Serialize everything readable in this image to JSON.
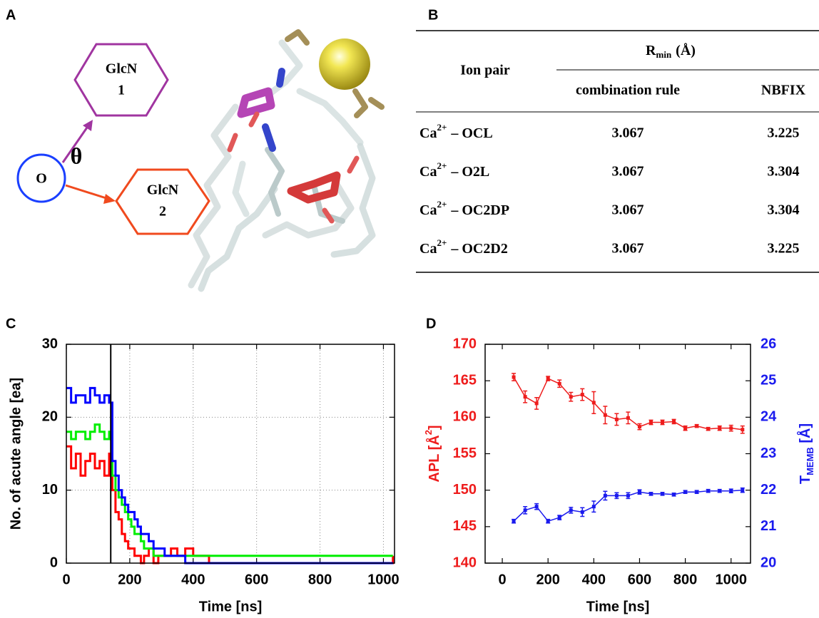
{
  "panel_labels": {
    "a": "A",
    "b": "B",
    "c": "C",
    "d": "D"
  },
  "diagram": {
    "origin": "O",
    "angle": "θ",
    "ring1": {
      "name": "GlcN",
      "number": "1"
    },
    "ring2": {
      "name": "GlcN",
      "number": "2"
    }
  },
  "table": {
    "header": {
      "ion_pair": "Ion pair",
      "rmin": {
        "symbol": "R",
        "sub": "min",
        "unit": "(Å)"
      },
      "columns": [
        "combination rule",
        "NBFIX"
      ]
    },
    "rows": [
      {
        "ion": "Ca",
        "charge": "2+",
        "partner": "– OCL",
        "combination_rule": "3.067",
        "nbfix": "3.225"
      },
      {
        "ion": "Ca",
        "charge": "2+",
        "partner": "– O2L",
        "combination_rule": "3.067",
        "nbfix": "3.304"
      },
      {
        "ion": "Ca",
        "charge": "2+",
        "partner": "– OC2DP",
        "combination_rule": "3.067",
        "nbfix": "3.304"
      },
      {
        "ion": "Ca",
        "charge": "2+",
        "partner": "– OC2D2",
        "combination_rule": "3.067",
        "nbfix": "3.225"
      }
    ]
  },
  "chart_data": [
    {
      "type": "line",
      "step": true,
      "grid": true,
      "xlabel": "Time [ns]",
      "ylabel": "No. of acute angle [ea]",
      "xlim": [
        0,
        1035
      ],
      "ylim": [
        0,
        30
      ],
      "xticks": [
        0,
        200,
        400,
        600,
        800,
        1000
      ],
      "yticks": [
        0,
        10,
        20,
        30
      ],
      "vline": 140,
      "x": [
        0,
        15,
        30,
        45,
        60,
        75,
        90,
        105,
        120,
        135,
        145,
        155,
        165,
        175,
        185,
        195,
        205,
        215,
        225,
        235,
        245,
        260,
        275,
        290,
        310,
        330,
        350,
        375,
        400,
        450,
        500,
        600,
        700,
        800,
        900,
        1000,
        1030
      ],
      "series": [
        {
          "color": "#ff0000",
          "values": [
            16,
            13,
            15,
            12,
            14,
            15,
            13,
            14,
            12,
            15,
            10,
            7,
            6,
            4,
            3,
            2,
            2,
            1,
            1,
            0,
            1,
            2,
            0,
            1,
            1,
            2,
            1,
            2,
            1,
            0,
            0,
            0,
            0,
            0,
            0,
            0,
            1
          ]
        },
        {
          "color": "#00ee00",
          "values": [
            18,
            17,
            18,
            18,
            17,
            18,
            19,
            18,
            17,
            18,
            12,
            10,
            9,
            8,
            7,
            6,
            5,
            4,
            4,
            3,
            2,
            2,
            1,
            1,
            1,
            1,
            1,
            1,
            1,
            1,
            1,
            1,
            1,
            1,
            1,
            1,
            1
          ]
        },
        {
          "color": "#0000ff",
          "values": [
            24,
            22,
            23,
            23,
            22,
            24,
            23,
            22,
            23,
            22,
            14,
            12,
            10,
            9,
            8,
            7,
            7,
            6,
            5,
            4,
            4,
            3,
            2,
            2,
            1,
            1,
            1,
            0,
            0,
            0,
            0,
            0,
            0,
            0,
            0,
            0,
            0
          ]
        }
      ]
    },
    {
      "type": "line",
      "grid": false,
      "xlabel": "Time [ns]",
      "ylabel": {
        "text": "APL [Å",
        "sup": "2",
        "close": "]"
      },
      "y2label": {
        "text": "T",
        "sub": "MEMB",
        "close": " [Å]"
      },
      "ylabel_color": "#ee1c1c",
      "y2label_color": "#1a1aee",
      "xlim": [
        -75,
        1085
      ],
      "ylim": [
        140,
        170
      ],
      "y2lim": [
        20,
        26
      ],
      "xticks": [
        0,
        200,
        400,
        600,
        800,
        1000
      ],
      "yticks": [
        140,
        145,
        150,
        155,
        160,
        165,
        170
      ],
      "y2ticks": [
        20,
        21,
        22,
        23,
        24,
        25,
        26
      ],
      "x": [
        50,
        100,
        150,
        200,
        250,
        300,
        350,
        400,
        450,
        500,
        550,
        600,
        650,
        700,
        750,
        800,
        850,
        900,
        950,
        1000,
        1050
      ],
      "series": [
        {
          "color": "#ee1c1c",
          "values": [
            165.5,
            162.8,
            161.9,
            165.3,
            164.6,
            162.8,
            163.1,
            162.0,
            160.3,
            159.7,
            159.9,
            158.7,
            159.3,
            159.3,
            159.4,
            158.5,
            158.8,
            158.4,
            158.5,
            158.5,
            158.3
          ],
          "errors": [
            0.5,
            0.8,
            0.8,
            0.3,
            0.5,
            0.6,
            0.8,
            1.5,
            1.2,
            0.8,
            0.8,
            0.4,
            0.3,
            0.3,
            0.3,
            0.3,
            0.2,
            0.2,
            0.3,
            0.4,
            0.5
          ]
        },
        {
          "color": "#1a1aee",
          "axis": "y2",
          "values": [
            21.15,
            21.45,
            21.55,
            21.15,
            21.25,
            21.45,
            21.4,
            21.55,
            21.85,
            21.85,
            21.85,
            21.95,
            21.9,
            21.9,
            21.88,
            21.95,
            21.95,
            21.98,
            21.98,
            21.98,
            22.0
          ],
          "errors": [
            0.05,
            0.1,
            0.08,
            0.05,
            0.06,
            0.08,
            0.12,
            0.15,
            0.12,
            0.08,
            0.08,
            0.06,
            0.04,
            0.04,
            0.04,
            0.04,
            0.04,
            0.04,
            0.04,
            0.05,
            0.06
          ]
        }
      ]
    }
  ]
}
